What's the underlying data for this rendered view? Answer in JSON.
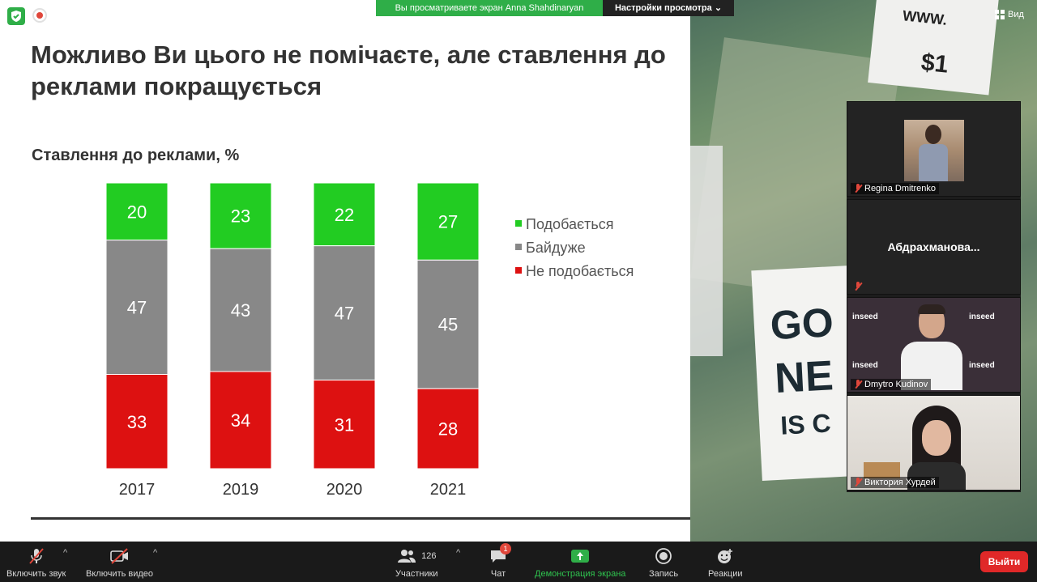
{
  "top_bar": {
    "share_banner": "Вы просматриваете экран Anna Shahdinaryan",
    "view_options": "Настройки просмотра",
    "view_mode": "Вид",
    "security_icon": "shield-check-icon",
    "recording_icon": "recording-icon"
  },
  "slide": {
    "title_line1": "Можливо Ви цього не помічаєте, але ставлення до",
    "title_line2": "реклами покращується",
    "chart_title": "Ставлення до реклами, %"
  },
  "chart_data": {
    "type": "bar",
    "stacked": true,
    "title": "Ставлення до реклами, %",
    "categories": [
      "2017",
      "2019",
      "2020",
      "2021"
    ],
    "series": [
      {
        "name": "Подобається",
        "color": "#22cc22",
        "values": [
          20,
          23,
          22,
          27
        ]
      },
      {
        "name": "Байдуже",
        "color": "#888888",
        "values": [
          47,
          43,
          47,
          45
        ]
      },
      {
        "name": "Не подобається",
        "color": "#dd1111",
        "values": [
          33,
          34,
          31,
          28
        ]
      }
    ],
    "ylim": [
      0,
      100
    ],
    "legend": "right",
    "grid": false
  },
  "photo": {
    "poster_top_line1": "WWW.",
    "poster_top_line2": "$1",
    "poster_line1": "GO",
    "poster_line2": "NE",
    "poster_line3": "IS C"
  },
  "participants": [
    {
      "name": "Regina Dmitrenko",
      "muted": true,
      "video": true
    },
    {
      "name": "Абдрахманова...",
      "muted": true,
      "video": false
    },
    {
      "name": "Dmytro Kudinov",
      "muted": true,
      "video": true
    },
    {
      "name": "Виктория  Хурдей",
      "muted": true,
      "video": true
    }
  ],
  "toolbar": {
    "mute_label": "Включить звук",
    "video_label": "Включить видео",
    "participants_label": "Участники",
    "participants_count": "126",
    "chat_label": "Чат",
    "chat_badge": "1",
    "share_label": "Демонстрация экрана",
    "record_label": "Запись",
    "reactions_label": "Реакции",
    "leave_label": "Выйти"
  },
  "colors": {
    "zoom_green": "#2fae48",
    "leave_red": "#e02828",
    "toolbar_bg": "#1a1a1a"
  }
}
